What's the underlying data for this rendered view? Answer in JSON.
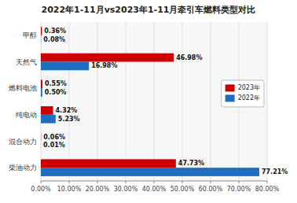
{
  "chart_data": {
    "type": "bar",
    "orientation": "horizontal",
    "title": "2022年1-11月vs2023年1-11月牵引车燃料类型对比",
    "categories": [
      "柴油动力",
      "混合动力",
      "纯电动",
      "燃料电池",
      "天然气",
      "甲醇"
    ],
    "series": [
      {
        "name": "2023年",
        "color": "#cc0000",
        "values": [
          47.73,
          0.06,
          4.32,
          0.55,
          46.98,
          0.36
        ],
        "value_labels": [
          "47.73%",
          "0.06%",
          "4.32%",
          "0.55%",
          "46.98%",
          "0.36%"
        ]
      },
      {
        "name": "2022年",
        "color": "#1f6dbf",
        "values": [
          77.21,
          0.01,
          5.23,
          0.5,
          16.98,
          0.08
        ],
        "value_labels": [
          "77.21%",
          "0.01%",
          "5.23%",
          "0.50%",
          "16.98%",
          "0.08%"
        ]
      }
    ],
    "xlim": [
      0,
      80
    ],
    "xticks": [
      {
        "value": 0,
        "label": "0.00%"
      },
      {
        "value": 10,
        "label": "10.00%"
      },
      {
        "value": 20,
        "label": "20.00%"
      },
      {
        "value": 30,
        "label": "30.00%"
      },
      {
        "value": 40,
        "label": "40.00%"
      },
      {
        "value": 50,
        "label": "50.00%"
      },
      {
        "value": 60,
        "label": "60.00%"
      },
      {
        "value": 70,
        "label": "70.00%"
      },
      {
        "value": 80,
        "label": "80.00%"
      }
    ],
    "grid": true,
    "legend": "right",
    "data_labels": true
  }
}
